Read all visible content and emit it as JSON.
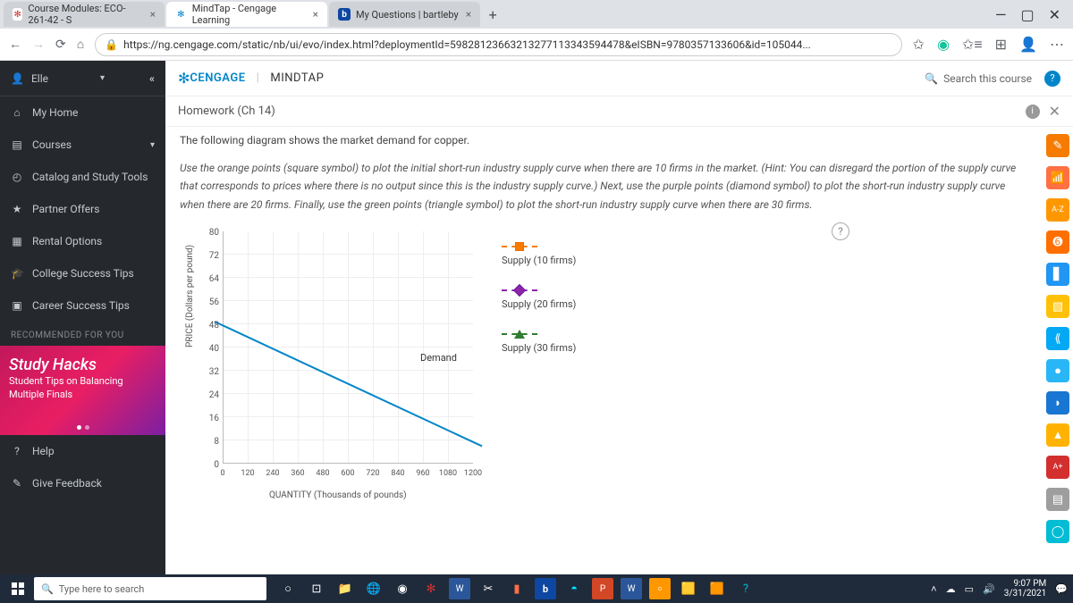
{
  "browser": {
    "tabs": [
      {
        "label": "Course Modules: ECO-261-42 - S",
        "icon_bg": "#d32f2f",
        "icon_text": "✻",
        "active": false
      },
      {
        "label": "MindTap - Cengage Learning",
        "icon_bg": "#0085ca",
        "icon_text": "✻",
        "active": true
      },
      {
        "label": "My Questions | bartleby",
        "icon_bg": "#0d47a1",
        "icon_text": "b",
        "active": false
      }
    ],
    "url": "https://ng.cengage.com/static/nb/ui/evo/index.html?deploymentId=59828123663213277113343594478&eISBN=9780357133606&id=105044..."
  },
  "sidebar": {
    "user": "Elle",
    "items": [
      {
        "icon": "⌂",
        "label": "My Home"
      },
      {
        "icon": "▤",
        "label": "Courses",
        "chevron": true
      },
      {
        "icon": "◴",
        "label": "Catalog and Study Tools"
      },
      {
        "icon": "★",
        "label": "Partner Offers"
      },
      {
        "icon": "▦",
        "label": "Rental Options"
      },
      {
        "icon": "🎓",
        "label": "College Success Tips"
      },
      {
        "icon": "▣",
        "label": "Career Success Tips"
      }
    ],
    "recommended": "RECOMMENDED FOR YOU",
    "promo_title": "Study Hacks",
    "promo_line1": "Student Tips on Balancing",
    "promo_line2": "Multiple Finals",
    "help": "Help",
    "feedback": "Give Feedback"
  },
  "header": {
    "brand": "CENGAGE",
    "product": "MINDTAP",
    "search": "Search this course"
  },
  "assignment": {
    "title": "Homework (Ch 14)",
    "intro": "The following diagram shows the market demand for copper.",
    "instructions": "Use the orange points (square symbol) to plot the initial short-run industry supply curve when there are 10 firms in the market. (Hint: You can disregard the portion of the supply curve that corresponds to prices where there is no output since this is the industry supply curve.) Next, use the purple points (diamond symbol) to plot the short-run industry supply curve when there are 20 firms. Finally, use the green points (triangle symbol) to plot the short-run industry supply curve when there are 30 firms."
  },
  "chart": {
    "ylabel": "PRICE (Dollars per pound)",
    "xlabel": "QUANTITY (Thousands of pounds)",
    "yticks": [
      "80",
      "72",
      "64",
      "56",
      "48",
      "40",
      "32",
      "24",
      "16",
      "8",
      "0"
    ],
    "xticks": [
      "0",
      "120",
      "240",
      "360",
      "480",
      "600",
      "720",
      "840",
      "960",
      "1080",
      "1200"
    ],
    "demand_label": "Demand",
    "demand_color": "#0085ca",
    "grid_color": "#eeeeee",
    "legend": [
      {
        "label": "Supply (10 firms)",
        "color": "#f57c00",
        "shape": "square"
      },
      {
        "label": "Supply (20 firms)",
        "color": "#8e24aa",
        "shape": "diamond"
      },
      {
        "label": "Supply (30 firms)",
        "color": "#2e7d32",
        "shape": "triangle"
      }
    ]
  },
  "tools": [
    {
      "bg": "#f57c00",
      "txt": "✎"
    },
    {
      "bg": "#ff7043",
      "txt": "📶"
    },
    {
      "bg": "#ff9800",
      "txt": "A-Z"
    },
    {
      "bg": "#ff6f00",
      "txt": "➏"
    },
    {
      "bg": "#2196f3",
      "txt": "▋"
    },
    {
      "bg": "#ffc107",
      "txt": "▧"
    },
    {
      "bg": "#03a9f4",
      "txt": "⟪"
    },
    {
      "bg": "#29b6f6",
      "txt": "●"
    },
    {
      "bg": "#1976d2",
      "txt": "◗"
    },
    {
      "bg": "#ffb300",
      "txt": "▲"
    },
    {
      "bg": "#d32f2f",
      "txt": "A+"
    },
    {
      "bg": "#9e9e9e",
      "txt": "▤"
    },
    {
      "bg": "#00bcd4",
      "txt": "◯"
    }
  ],
  "taskbar": {
    "search_placeholder": "Type here to search",
    "time": "9:07 PM",
    "date": "3/31/2021"
  }
}
